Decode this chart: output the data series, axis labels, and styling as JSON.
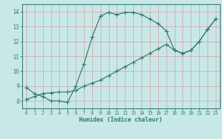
{
  "xlabel": "Humidex (Indice chaleur)",
  "bg_color": "#c8e8e8",
  "line_color": "#2d7a6b",
  "grid_color": "#d4a8a8",
  "xlim": [
    -0.5,
    23.5
  ],
  "ylim": [
    7.5,
    14.5
  ],
  "xticks": [
    0,
    1,
    2,
    3,
    4,
    5,
    6,
    7,
    8,
    9,
    10,
    11,
    12,
    13,
    14,
    15,
    16,
    17,
    18,
    19,
    20,
    21,
    22,
    23
  ],
  "yticks": [
    8,
    9,
    10,
    11,
    12,
    13,
    14
  ],
  "curve1_x": [
    0,
    1,
    2,
    3,
    4,
    5,
    6,
    7,
    8,
    9,
    10,
    11,
    12,
    13,
    14,
    15,
    16,
    17,
    18,
    19,
    20,
    21,
    22,
    23
  ],
  "curve1_y": [
    8.9,
    8.5,
    8.3,
    8.0,
    8.0,
    7.9,
    9.0,
    10.5,
    12.3,
    13.7,
    13.95,
    13.8,
    13.95,
    13.95,
    13.8,
    13.5,
    13.2,
    12.7,
    11.4,
    11.2,
    11.4,
    12.0,
    12.8,
    13.5
  ],
  "curve2_x": [
    0,
    1,
    2,
    3,
    4,
    5,
    6,
    7,
    8,
    9,
    10,
    11,
    12,
    13,
    14,
    15,
    16,
    17,
    18,
    19,
    20,
    21,
    22,
    23
  ],
  "curve2_y": [
    8.1,
    8.3,
    8.5,
    8.55,
    8.6,
    8.6,
    8.7,
    9.0,
    9.2,
    9.4,
    9.7,
    10.0,
    10.3,
    10.6,
    10.9,
    11.2,
    11.5,
    11.8,
    11.4,
    11.2,
    11.4,
    12.0,
    12.8,
    13.5
  ]
}
